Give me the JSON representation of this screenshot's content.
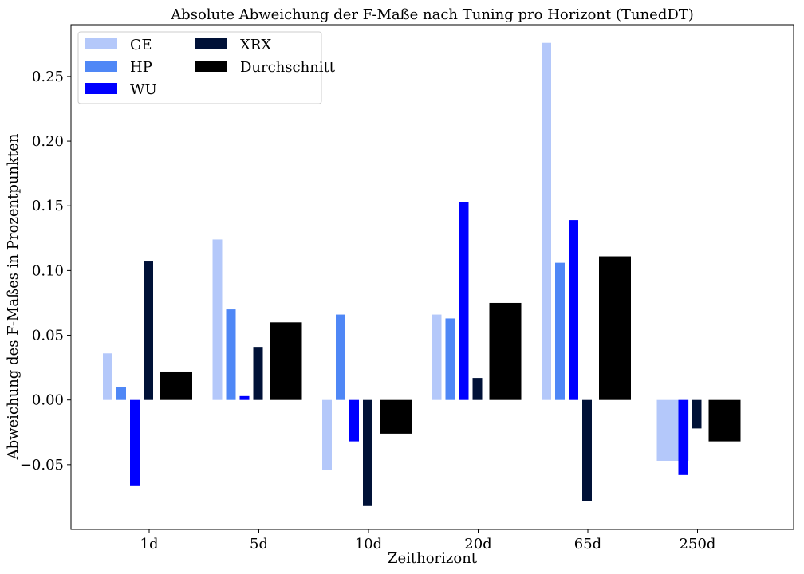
{
  "chart_data": {
    "type": "bar",
    "title": "Absolute Abweichung der F-Maße nach Tuning pro Horizont (TunedDT)",
    "xlabel": "Zeithorizont",
    "ylabel": "Abweichung des F-Maßes in Prozentpunkten",
    "categories": [
      "1d",
      "5d",
      "10d",
      "20d",
      "65d",
      "250d"
    ],
    "ylim": [
      -0.1,
      0.29
    ],
    "yticks": [
      -0.05,
      0.0,
      0.05,
      0.1,
      0.15,
      0.2,
      0.25
    ],
    "ytick_labels": [
      "−0.05",
      "0.00",
      "0.05",
      "0.10",
      "0.15",
      "0.20",
      "0.25"
    ],
    "grid": false,
    "legend": {
      "position": "top-left",
      "columns": 2
    },
    "series": [
      {
        "name": "GE",
        "color": "#b4c8fa",
        "values": [
          0.036,
          0.124,
          -0.054,
          0.066,
          0.276,
          -0.047
        ]
      },
      {
        "name": "HP",
        "color": "#4f87f6",
        "values": [
          0.01,
          0.07,
          0.066,
          0.063,
          0.106,
          null
        ]
      },
      {
        "name": "WU",
        "color": "#0000ff",
        "values": [
          -0.066,
          0.003,
          -0.032,
          0.153,
          0.139,
          -0.058
        ]
      },
      {
        "name": "XRX",
        "color": "#001137",
        "values": [
          0.107,
          0.041,
          -0.082,
          0.017,
          -0.078,
          -0.022
        ]
      },
      {
        "name": "Durchschnitt",
        "color": "#000000",
        "values": [
          0.022,
          0.06,
          -0.026,
          0.075,
          0.111,
          -0.032
        ]
      }
    ]
  }
}
